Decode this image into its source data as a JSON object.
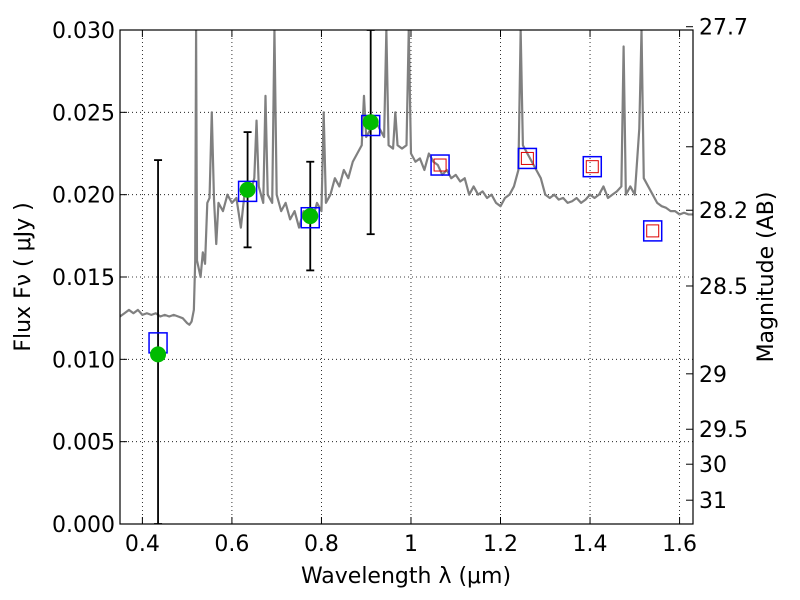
{
  "chart_data": {
    "type": "scatter",
    "xlabel": "Wavelength  λ (μm)",
    "ylabel": "Flux  Fν  ( μJy )",
    "y2label": "Magnitude (AB)",
    "xlim": [
      0.35,
      1.63
    ],
    "ylim": [
      0.0,
      0.03
    ],
    "x_ticks": [
      0.4,
      0.6,
      0.8,
      1.0,
      1.2,
      1.4,
      1.6
    ],
    "x_tick_labels": [
      "0.4",
      "0.6",
      "0.8",
      "1",
      "1.2",
      "1.4",
      "1.6"
    ],
    "y_ticks": [
      0.0,
      0.005,
      0.01,
      0.015,
      0.02,
      0.025,
      0.03
    ],
    "y_tick_labels": [
      "0.000",
      "0.005",
      "0.010",
      "0.015",
      "0.020",
      "0.025",
      "0.030"
    ],
    "y2_ticks": [
      27.7,
      28,
      28.2,
      28.5,
      29,
      29.5,
      30,
      31
    ],
    "y2_tick_labels": [
      "27.7",
      "28",
      "28.2",
      "28.5",
      "29",
      "29.5",
      "30",
      "31"
    ],
    "grid": true,
    "colors": {
      "model": "#808080",
      "observed": "#00bb00",
      "model_box": "#0000ff",
      "model_box_inner": "#dd0000",
      "errorbar": "#000000"
    },
    "series": [
      {
        "kind": "line",
        "points": [
          [
            0.35,
            0.0126
          ],
          [
            0.36,
            0.0128
          ],
          [
            0.37,
            0.013
          ],
          [
            0.38,
            0.0128
          ],
          [
            0.39,
            0.013
          ],
          [
            0.4,
            0.0127
          ],
          [
            0.41,
            0.0128
          ],
          [
            0.42,
            0.0127
          ],
          [
            0.43,
            0.0128
          ],
          [
            0.44,
            0.0126
          ],
          [
            0.45,
            0.0127
          ],
          [
            0.46,
            0.0126
          ],
          [
            0.47,
            0.0127
          ],
          [
            0.48,
            0.0126
          ],
          [
            0.49,
            0.0125
          ],
          [
            0.5,
            0.0122
          ],
          [
            0.505,
            0.0121
          ],
          [
            0.51,
            0.0123
          ],
          [
            0.515,
            0.013
          ],
          [
            0.518,
            0.016
          ],
          [
            0.52,
            0.03
          ],
          [
            0.522,
            0.016
          ],
          [
            0.53,
            0.015
          ],
          [
            0.535,
            0.0165
          ],
          [
            0.54,
            0.0158
          ],
          [
            0.545,
            0.0195
          ],
          [
            0.55,
            0.0198
          ],
          [
            0.555,
            0.025
          ],
          [
            0.56,
            0.0197
          ],
          [
            0.565,
            0.017
          ],
          [
            0.57,
            0.0195
          ],
          [
            0.58,
            0.019
          ],
          [
            0.59,
            0.02
          ],
          [
            0.6,
            0.0195
          ],
          [
            0.61,
            0.0198
          ],
          [
            0.62,
            0.018
          ],
          [
            0.63,
            0.0205
          ],
          [
            0.64,
            0.02
          ],
          [
            0.65,
            0.021
          ],
          [
            0.655,
            0.0245
          ],
          [
            0.66,
            0.0205
          ],
          [
            0.67,
            0.0195
          ],
          [
            0.675,
            0.026
          ],
          [
            0.68,
            0.02
          ],
          [
            0.69,
            0.0195
          ],
          [
            0.695,
            0.03
          ],
          [
            0.7,
            0.02
          ],
          [
            0.71,
            0.019
          ],
          [
            0.72,
            0.0195
          ],
          [
            0.73,
            0.0185
          ],
          [
            0.74,
            0.019
          ],
          [
            0.75,
            0.018
          ],
          [
            0.76,
            0.019
          ],
          [
            0.77,
            0.0188
          ],
          [
            0.78,
            0.0185
          ],
          [
            0.79,
            0.0195
          ],
          [
            0.8,
            0.019
          ],
          [
            0.805,
            0.025
          ],
          [
            0.81,
            0.0195
          ],
          [
            0.82,
            0.02
          ],
          [
            0.83,
            0.021
          ],
          [
            0.84,
            0.0205
          ],
          [
            0.85,
            0.0215
          ],
          [
            0.86,
            0.021
          ],
          [
            0.87,
            0.022
          ],
          [
            0.88,
            0.0225
          ],
          [
            0.89,
            0.023
          ],
          [
            0.895,
            0.026
          ],
          [
            0.9,
            0.0235
          ],
          [
            0.91,
            0.024
          ],
          [
            0.92,
            0.0245
          ],
          [
            0.93,
            0.024
          ],
          [
            0.94,
            0.0235
          ],
          [
            0.945,
            0.03
          ],
          [
            0.95,
            0.023
          ],
          [
            0.96,
            0.0228
          ],
          [
            0.965,
            0.025
          ],
          [
            0.97,
            0.023
          ],
          [
            0.98,
            0.0228
          ],
          [
            0.99,
            0.023
          ],
          [
            0.995,
            0.03
          ],
          [
            1.0,
            0.0225
          ],
          [
            1.01,
            0.022
          ],
          [
            1.02,
            0.0222
          ],
          [
            1.03,
            0.0215
          ],
          [
            1.04,
            0.0225
          ],
          [
            1.05,
            0.022
          ],
          [
            1.06,
            0.0218
          ],
          [
            1.07,
            0.0212
          ],
          [
            1.08,
            0.0215
          ],
          [
            1.09,
            0.021
          ],
          [
            1.1,
            0.0212
          ],
          [
            1.11,
            0.0208
          ],
          [
            1.12,
            0.021
          ],
          [
            1.13,
            0.02
          ],
          [
            1.14,
            0.0205
          ],
          [
            1.15,
            0.02
          ],
          [
            1.16,
            0.0202
          ],
          [
            1.17,
            0.0198
          ],
          [
            1.18,
            0.02
          ],
          [
            1.19,
            0.0195
          ],
          [
            1.2,
            0.0193
          ],
          [
            1.21,
            0.0198
          ],
          [
            1.22,
            0.02
          ],
          [
            1.23,
            0.0205
          ],
          [
            1.24,
            0.0215
          ],
          [
            1.245,
            0.03
          ],
          [
            1.25,
            0.023
          ],
          [
            1.26,
            0.0225
          ],
          [
            1.27,
            0.022
          ],
          [
            1.28,
            0.0215
          ],
          [
            1.29,
            0.021
          ],
          [
            1.3,
            0.02
          ],
          [
            1.31,
            0.0198
          ],
          [
            1.32,
            0.02
          ],
          [
            1.33,
            0.0197
          ],
          [
            1.34,
            0.0198
          ],
          [
            1.35,
            0.0195
          ],
          [
            1.36,
            0.0196
          ],
          [
            1.37,
            0.0198
          ],
          [
            1.38,
            0.0195
          ],
          [
            1.39,
            0.0197
          ],
          [
            1.4,
            0.02
          ],
          [
            1.41,
            0.0198
          ],
          [
            1.42,
            0.02
          ],
          [
            1.43,
            0.0205
          ],
          [
            1.44,
            0.0198
          ],
          [
            1.45,
            0.02
          ],
          [
            1.46,
            0.0202
          ],
          [
            1.47,
            0.0205
          ],
          [
            1.475,
            0.029
          ],
          [
            1.48,
            0.02
          ],
          [
            1.49,
            0.0205
          ],
          [
            1.5,
            0.02
          ],
          [
            1.51,
            0.024
          ],
          [
            1.515,
            0.03
          ],
          [
            1.52,
            0.021
          ],
          [
            1.53,
            0.0205
          ],
          [
            1.54,
            0.02
          ],
          [
            1.55,
            0.0195
          ],
          [
            1.56,
            0.0193
          ],
          [
            1.57,
            0.0192
          ],
          [
            1.58,
            0.019
          ],
          [
            1.59,
            0.019
          ],
          [
            1.6,
            0.0188
          ],
          [
            1.61,
            0.0189
          ],
          [
            1.62,
            0.0188
          ],
          [
            1.63,
            0.0188
          ]
        ]
      },
      {
        "kind": "model_boxes",
        "points": [
          {
            "x": 0.435,
            "y": 0.011
          },
          {
            "x": 0.635,
            "y": 0.0202
          },
          {
            "x": 0.775,
            "y": 0.0186
          },
          {
            "x": 0.91,
            "y": 0.0242
          },
          {
            "x": 1.065,
            "y": 0.0218
          },
          {
            "x": 1.26,
            "y": 0.0222
          },
          {
            "x": 1.405,
            "y": 0.0217
          },
          {
            "x": 1.54,
            "y": 0.0178
          }
        ],
        "inner_marked": [
          false,
          false,
          false,
          false,
          true,
          true,
          true,
          true
        ]
      },
      {
        "kind": "observed",
        "points": [
          {
            "x": 0.435,
            "y": 0.0103,
            "yerr": [
              0.0,
              0.0221
            ]
          },
          {
            "x": 0.635,
            "y": 0.0203,
            "yerr": [
              0.0168,
              0.0238
            ]
          },
          {
            "x": 0.775,
            "y": 0.0187,
            "yerr": [
              0.0154,
              0.022
            ]
          },
          {
            "x": 0.91,
            "y": 0.0244,
            "yerr": [
              0.0176,
              0.03
            ]
          }
        ]
      }
    ]
  }
}
